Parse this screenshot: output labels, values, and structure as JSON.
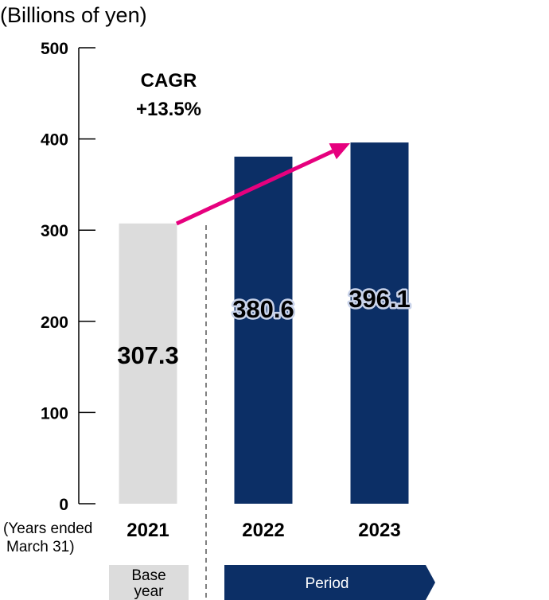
{
  "chart_data": {
    "type": "bar",
    "unit_label": "(Billions of yen)",
    "categories": [
      "2021",
      "2022",
      "2023"
    ],
    "values": [
      307.3,
      380.6,
      396.1
    ],
    "value_labels": [
      "307.3",
      "380.6",
      "396.1"
    ],
    "y_ticks": [
      "0",
      "100",
      "200",
      "300",
      "400",
      "500"
    ],
    "ylim": [
      0,
      500
    ],
    "x_note_line1": "(Years ended",
    "x_note_line2": "March 31)",
    "cagr_label": "CAGR",
    "cagr_value": "+13.5%",
    "base_tag_line1": "Base",
    "base_tag_line2": "year",
    "period_tag": "Period",
    "grid": false,
    "colors": {
      "base_bar": "#dcdcdc",
      "period_bar": "#0c2f66",
      "arrow": "#e6007e",
      "base_tag": "#dcdcdc",
      "period_tag": "#0c2f66"
    }
  }
}
